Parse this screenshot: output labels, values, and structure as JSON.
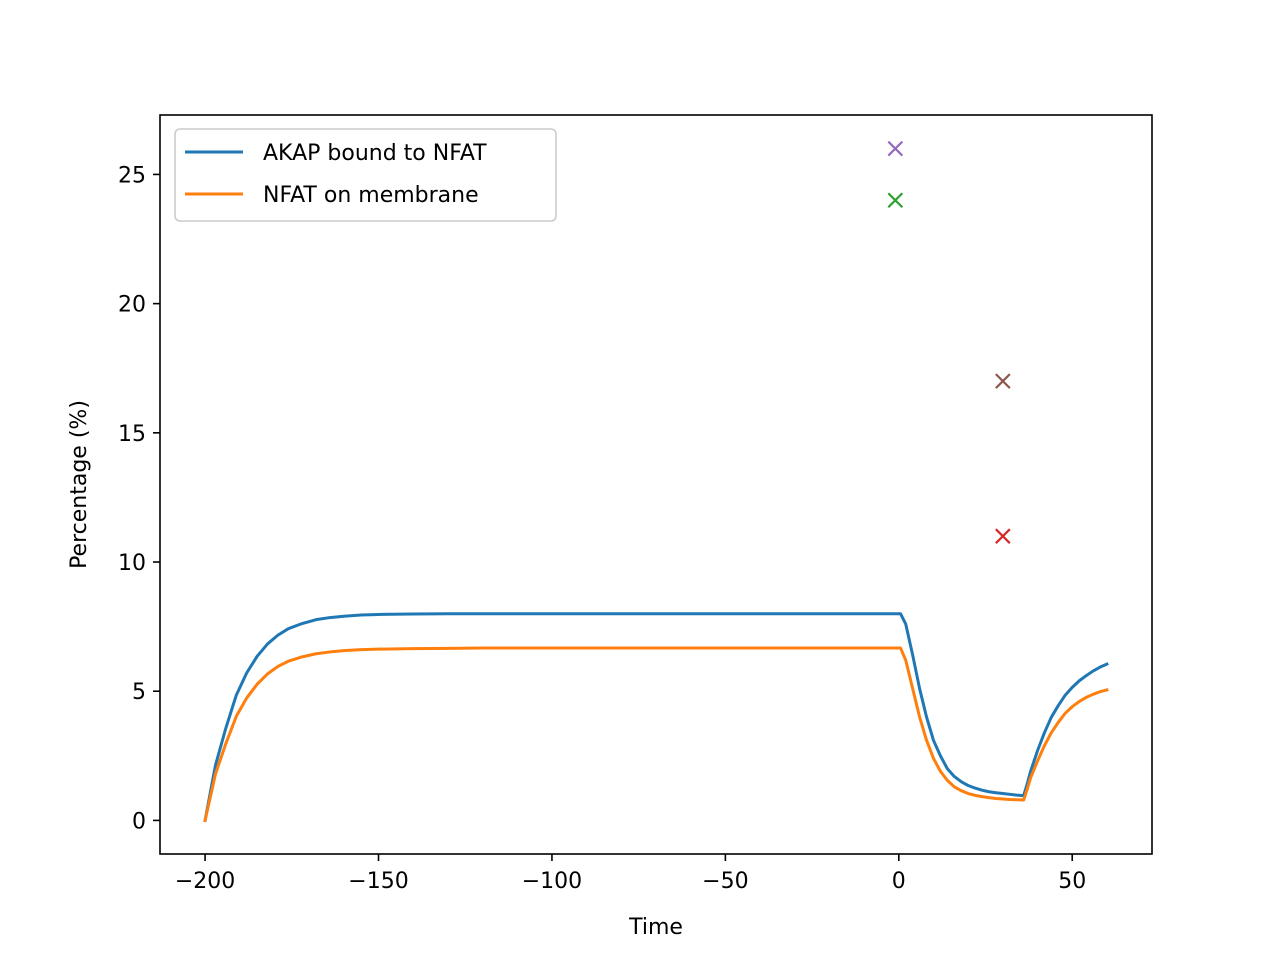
{
  "chart_data": {
    "type": "line",
    "title": "",
    "xlabel": "Time",
    "ylabel": "Percentage (%)",
    "xlim": [
      -213,
      73
    ],
    "ylim": [
      -1.3,
      27.3
    ],
    "x_ticks": [
      -200,
      -150,
      -100,
      -50,
      0,
      50
    ],
    "x_tick_labels": [
      "−200",
      "−150",
      "−100",
      "−50",
      "0",
      "50"
    ],
    "y_ticks": [
      0,
      5,
      10,
      15,
      20,
      25
    ],
    "y_tick_labels": [
      "0",
      "5",
      "10",
      "15",
      "20",
      "25"
    ],
    "grid": false,
    "legend_position": "top-left",
    "series": [
      {
        "name": "AKAP bound to NFAT",
        "color": "#1f77b4",
        "x": [
          -200,
          -197,
          -194,
          -191,
          -188,
          -185,
          -182,
          -179,
          -176,
          -172,
          -168,
          -164,
          -160,
          -155,
          -150,
          -140,
          -130,
          -120,
          -100,
          -50,
          -10,
          -0.5,
          0.5,
          2,
          4,
          6,
          8,
          10,
          12,
          14,
          16,
          18,
          20,
          22,
          24,
          26,
          28,
          30,
          32,
          34,
          36,
          37,
          38,
          40,
          42,
          44,
          46,
          48,
          50,
          52,
          54,
          56,
          58,
          60
        ],
        "y": [
          0.0,
          2.14,
          3.58,
          4.85,
          5.71,
          6.35,
          6.83,
          7.17,
          7.42,
          7.62,
          7.77,
          7.85,
          7.9,
          7.95,
          7.97,
          7.99,
          8.0,
          8.0,
          8.0,
          8.0,
          8.0,
          8.0,
          8.0,
          7.6,
          6.4,
          5.1,
          4.0,
          3.1,
          2.5,
          2.0,
          1.7,
          1.5,
          1.35,
          1.25,
          1.17,
          1.11,
          1.07,
          1.04,
          1.01,
          0.98,
          0.96,
          1.4,
          1.9,
          2.7,
          3.4,
          4.0,
          4.45,
          4.85,
          5.15,
          5.4,
          5.6,
          5.78,
          5.93,
          6.05
        ]
      },
      {
        "name": "NFAT on membrane",
        "color": "#ff7f0e",
        "x": [
          -200,
          -197,
          -194,
          -191,
          -188,
          -185,
          -182,
          -179,
          -176,
          -172,
          -168,
          -164,
          -160,
          -155,
          -150,
          -140,
          -130,
          -120,
          -100,
          -50,
          -10,
          -0.5,
          0.5,
          2,
          4,
          6,
          8,
          10,
          12,
          14,
          16,
          18,
          20,
          22,
          24,
          26,
          28,
          30,
          32,
          34,
          36,
          37,
          38,
          40,
          42,
          44,
          46,
          48,
          50,
          52,
          54,
          56,
          58,
          60
        ],
        "y": [
          0.0,
          1.8,
          2.98,
          4.03,
          4.74,
          5.27,
          5.67,
          5.96,
          6.16,
          6.33,
          6.45,
          6.52,
          6.57,
          6.61,
          6.63,
          6.65,
          6.66,
          6.67,
          6.67,
          6.67,
          6.67,
          6.67,
          6.67,
          6.2,
          5.1,
          4.0,
          3.1,
          2.4,
          1.9,
          1.55,
          1.3,
          1.15,
          1.04,
          0.97,
          0.92,
          0.88,
          0.85,
          0.83,
          0.81,
          0.8,
          0.79,
          1.2,
          1.65,
          2.3,
          2.9,
          3.4,
          3.8,
          4.15,
          4.4,
          4.6,
          4.76,
          4.88,
          4.98,
          5.05
        ]
      }
    ],
    "markers": [
      {
        "x": -1,
        "y": 26,
        "color": "#9467bd",
        "symbol": "x"
      },
      {
        "x": -1,
        "y": 24,
        "color": "#2ca02c",
        "symbol": "x"
      },
      {
        "x": 30,
        "y": 17,
        "color": "#8c564b",
        "symbol": "x"
      },
      {
        "x": 30,
        "y": 11,
        "color": "#d62728",
        "symbol": "x"
      }
    ]
  }
}
